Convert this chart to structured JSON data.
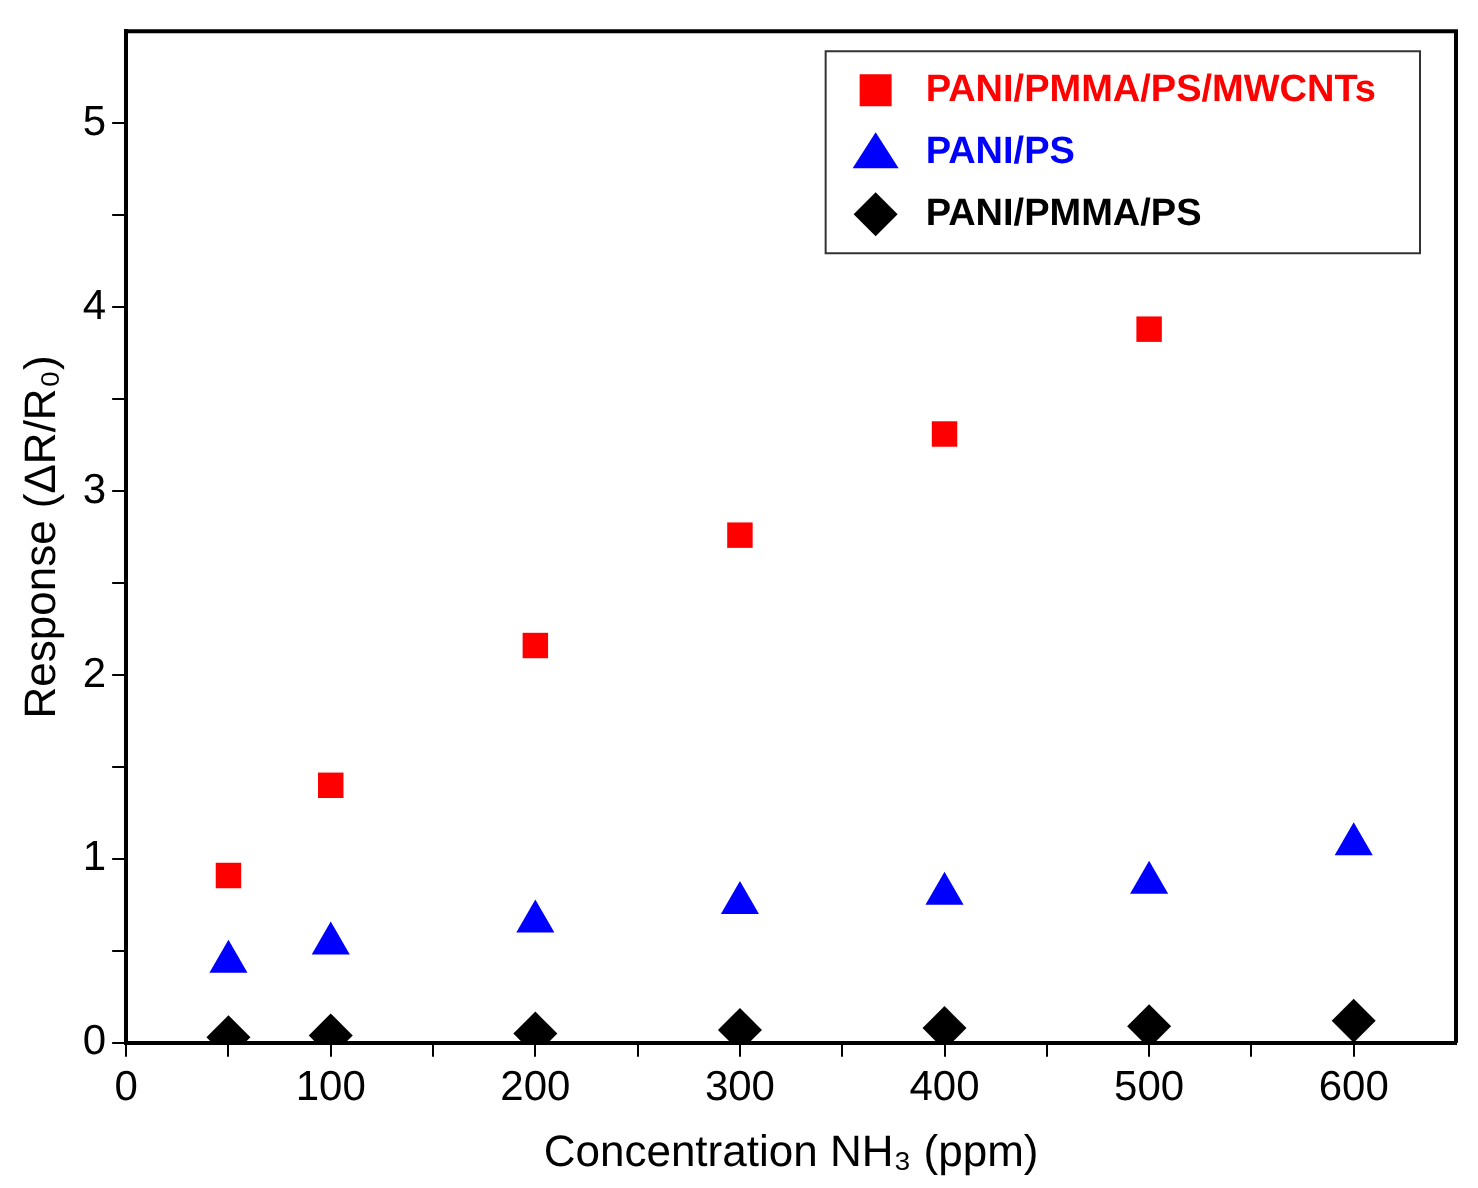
{
  "chart_data": {
    "type": "scatter",
    "xlabel": "Concentration NH₃ (ppm)",
    "ylabel": "Response (ΔR/R₀)",
    "x": [
      50,
      100,
      200,
      300,
      400,
      500,
      600
    ],
    "series": [
      {
        "name": "PANI/PMMA/PS/MWCNTs",
        "color": "#ff0000",
        "marker": "square",
        "values": [
          0.91,
          1.4,
          2.16,
          2.76,
          3.31,
          3.88,
          null
        ]
      },
      {
        "name": "PANI/PS",
        "color": "#0000ff",
        "marker": "triangle",
        "values": [
          0.44,
          0.54,
          0.66,
          0.76,
          0.81,
          0.87,
          1.08
        ]
      },
      {
        "name": "PANI/PMMA/PS",
        "color": "#000000",
        "marker": "diamond",
        "values": [
          0.03,
          0.04,
          0.05,
          0.07,
          0.08,
          0.09,
          0.12
        ]
      }
    ],
    "xlim": [
      0,
      650
    ],
    "xticks": [
      0,
      {
        "value": 50,
        "label": null
      },
      100,
      {
        "value": 150,
        "label": null
      },
      200,
      {
        "value": 250,
        "label": null
      },
      300,
      {
        "value": 350,
        "label": null
      },
      400,
      {
        "value": 450,
        "label": null
      },
      500,
      {
        "value": 550,
        "label": null
      },
      600
    ],
    "ylim": [
      0,
      5.5
    ],
    "yticks": [
      0,
      {
        "value": 0.5,
        "label": null
      },
      1,
      {
        "value": 1.5,
        "label": null
      },
      2,
      {
        "value": 2.5,
        "label": null
      },
      3,
      {
        "value": 3.5,
        "label": null
      },
      4,
      {
        "value": 4.5,
        "label": null
      },
      5
    ],
    "grid": false,
    "legend": "top right"
  }
}
